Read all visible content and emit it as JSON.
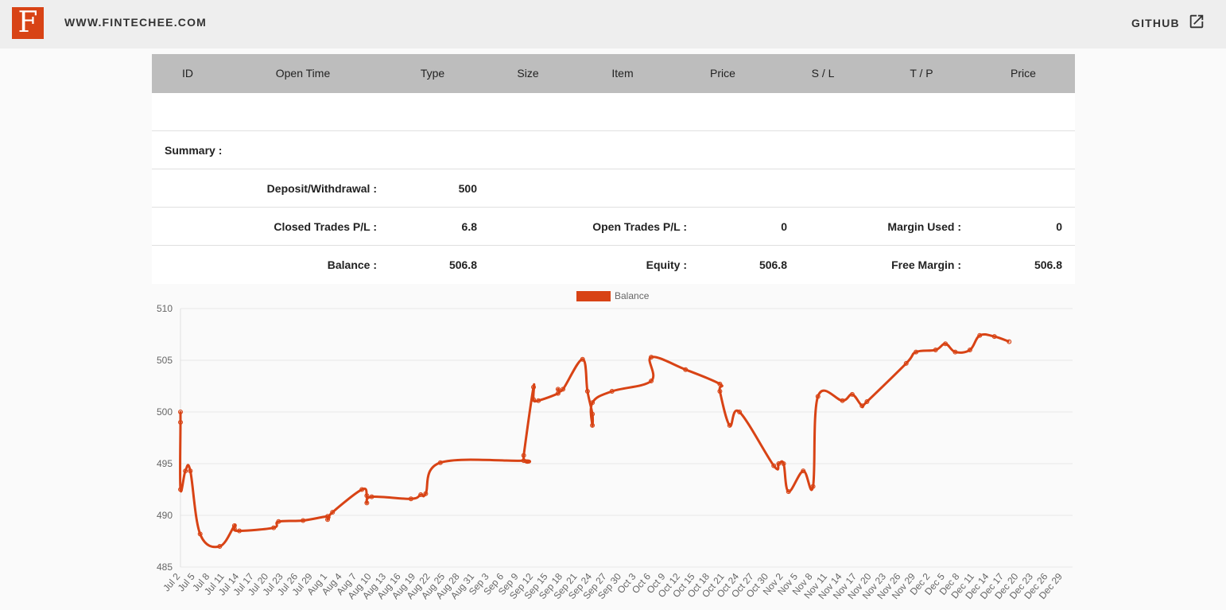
{
  "header": {
    "logo_letter": "F",
    "site_link": "WWW.FINTECHEE.COM",
    "github_label": "GITHUB",
    "brand_color": "#d84315"
  },
  "table": {
    "columns": [
      "ID",
      "Open Time",
      "Type",
      "Size",
      "Item",
      "Price",
      "S / L",
      "T / P",
      "Price"
    ]
  },
  "summary": {
    "title": "Summary :",
    "deposit_label": "Deposit/Withdrawal :",
    "deposit_value": "500",
    "closed_pl_label": "Closed Trades P/L :",
    "closed_pl_value": "6.8",
    "open_pl_label": "Open Trades P/L :",
    "open_pl_value": "0",
    "margin_used_label": "Margin Used :",
    "margin_used_value": "0",
    "balance_label": "Balance :",
    "balance_value": "506.8",
    "equity_label": "Equity :",
    "equity_value": "506.8",
    "free_margin_label": "Free Margin :",
    "free_margin_value": "506.8"
  },
  "chart_data": {
    "type": "line",
    "title": "",
    "xlabel": "",
    "ylabel": "",
    "legend_position": "top-center",
    "grid": true,
    "color": "#d84315",
    "ylim": [
      485,
      510
    ],
    "yticks": [
      485,
      490,
      495,
      500,
      505,
      510
    ],
    "x_tick_labels": [
      "Jul 2",
      "Jul 5",
      "Jul 8",
      "Jul 11",
      "Jul 14",
      "Jul 17",
      "Jul 20",
      "Jul 23",
      "Jul 26",
      "Jul 29",
      "Aug 1",
      "Aug 4",
      "Aug 7",
      "Aug 10",
      "Aug 13",
      "Aug 16",
      "Aug 19",
      "Aug 22",
      "Aug 25",
      "Aug 28",
      "Aug 31",
      "Sep 3",
      "Sep 6",
      "Sep 9",
      "Sep 12",
      "Sep 15",
      "Sep 18",
      "Sep 21",
      "Sep 24",
      "Sep 27",
      "Sep 30",
      "Oct 3",
      "Oct 6",
      "Oct 9",
      "Oct 12",
      "Oct 15",
      "Oct 18",
      "Oct 21",
      "Oct 24",
      "Oct 27",
      "Oct 30",
      "Nov 2",
      "Nov 5",
      "Nov 8",
      "Nov 11",
      "Nov 14",
      "Nov 17",
      "Nov 20",
      "Nov 23",
      "Nov 26",
      "Nov 29",
      "Dec 2",
      "Dec 5",
      "Dec 8",
      "Dec 11",
      "Dec 14",
      "Dec 17",
      "Dec 20",
      "Dec 23",
      "Dec 26",
      "Dec 29"
    ],
    "series": [
      {
        "name": "Balance",
        "points": [
          [
            "Jul 2",
            500.0
          ],
          [
            "Jul 2",
            499.0
          ],
          [
            "Jul 2",
            492.5
          ],
          [
            "Jul 3",
            494.3
          ],
          [
            "Jul 4",
            494.3
          ],
          [
            "Jul 6",
            488.2
          ],
          [
            "Jul 10",
            487.0
          ],
          [
            "Jul 13",
            489.0
          ],
          [
            "Jul 13",
            488.7
          ],
          [
            "Jul 14",
            488.5
          ],
          [
            "Jul 21",
            488.8
          ],
          [
            "Jul 22",
            489.4
          ],
          [
            "Jul 27",
            489.5
          ],
          [
            "Aug 1",
            489.9
          ],
          [
            "Aug 1",
            489.6
          ],
          [
            "Aug 2",
            490.3
          ],
          [
            "Aug 8",
            492.5
          ],
          [
            "Aug 9",
            491.9
          ],
          [
            "Aug 9",
            491.2
          ],
          [
            "Aug 10",
            491.8
          ],
          [
            "Aug 18",
            491.6
          ],
          [
            "Aug 20",
            492.0
          ],
          [
            "Aug 21",
            492.1
          ],
          [
            "Aug 24",
            495.1
          ],
          [
            "Sep 10",
            495.3
          ],
          [
            "Sep 10",
            495.8
          ],
          [
            "Sep 12",
            502.4
          ],
          [
            "Sep 12",
            501.2
          ],
          [
            "Sep 13",
            501.1
          ],
          [
            "Sep 17",
            501.8
          ],
          [
            "Sep 17",
            502.2
          ],
          [
            "Sep 18",
            502.2
          ],
          [
            "Sep 22",
            505.1
          ],
          [
            "Sep 23",
            502.0
          ],
          [
            "Sep 24",
            499.8
          ],
          [
            "Sep 24",
            498.7
          ],
          [
            "Sep 24",
            500.9
          ],
          [
            "Sep 28",
            502.0
          ],
          [
            "Oct 6",
            503.0
          ],
          [
            "Oct 6",
            505.3
          ],
          [
            "Oct 13",
            504.1
          ],
          [
            "Oct 20",
            502.7
          ],
          [
            "Oct 20",
            502.0
          ],
          [
            "Oct 22",
            498.7
          ],
          [
            "Oct 24",
            500.0
          ],
          [
            "Oct 31",
            494.8
          ],
          [
            "Nov 1",
            495.0
          ],
          [
            "Nov 2",
            495.0
          ],
          [
            "Nov 3",
            492.3
          ],
          [
            "Nov 6",
            494.3
          ],
          [
            "Nov 8",
            492.8
          ],
          [
            "Nov 9",
            501.5
          ],
          [
            "Nov 14",
            501.1
          ],
          [
            "Nov 16",
            501.7
          ],
          [
            "Nov 18",
            500.6
          ],
          [
            "Nov 19",
            501.0
          ],
          [
            "Nov 27",
            504.7
          ],
          [
            "Nov 29",
            505.8
          ],
          [
            "Dec 3",
            506.0
          ],
          [
            "Dec 5",
            506.6
          ],
          [
            "Dec 7",
            505.8
          ],
          [
            "Dec 10",
            506.0
          ],
          [
            "Dec 12",
            507.4
          ],
          [
            "Dec 15",
            507.3
          ],
          [
            "Dec 18",
            506.8
          ]
        ]
      }
    ]
  }
}
